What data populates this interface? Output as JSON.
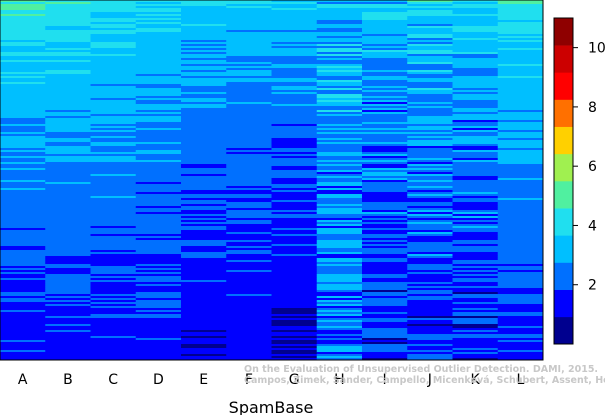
{
  "chart_data": {
    "type": "heatmap",
    "x_title": "SpamBase",
    "categories": [
      "A",
      "B",
      "C",
      "D",
      "E",
      "F",
      "G",
      "H",
      "I",
      "J",
      "K",
      "L"
    ],
    "value_range": [
      0,
      11
    ],
    "colorbar": {
      "ticks": [
        2,
        4,
        6,
        8,
        10
      ],
      "colors": [
        "#00008F",
        "#0000FF",
        "#0070FF",
        "#00BFFF",
        "#20DFEF",
        "#50F0A0",
        "#A0F050",
        "#FFD000",
        "#FF7000",
        "#FF0000",
        "#CC0000",
        "#8F0000"
      ]
    },
    "column_profiles": {
      "top": [
        4.8,
        4.6,
        4.4,
        3.9,
        3.9,
        3.6,
        3.6,
        3.4,
        3.6,
        4.0,
        3.9,
        4.6
      ],
      "bottom": [
        1.3,
        1.4,
        1.4,
        1.4,
        1.1,
        1.2,
        1.0,
        2.2,
        1.5,
        1.5,
        1.4,
        1.5
      ],
      "noise": [
        0.5,
        0.4,
        0.5,
        0.5,
        0.45,
        0.45,
        0.45,
        1.0,
        0.9,
        0.9,
        0.9,
        0.4
      ]
    }
  },
  "watermark": {
    "line1": "On the Evaluation of Unsupervised Outlier Detection. DAMI, 2015.",
    "line2": "Campos, Zimek, Sander, Campello, Micenková, Schubert, Assent, Houle"
  }
}
